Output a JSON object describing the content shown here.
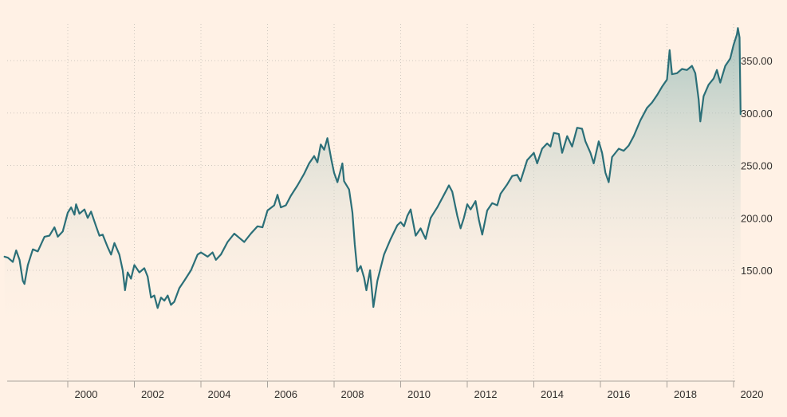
{
  "chart_data": {
    "type": "area",
    "title": "",
    "xlabel": "",
    "ylabel": "",
    "x_range": [
      1998.1,
      2020.2
    ],
    "ylim": [
      50,
      390
    ],
    "x_ticks": [
      {
        "value": 2000,
        "label": "2000"
      },
      {
        "value": 2002,
        "label": "2002"
      },
      {
        "value": 2004,
        "label": "2004"
      },
      {
        "value": 2006,
        "label": "2006"
      },
      {
        "value": 2008,
        "label": "2008"
      },
      {
        "value": 2010,
        "label": "2010"
      },
      {
        "value": 2012,
        "label": "2012"
      },
      {
        "value": 2014,
        "label": "2014"
      },
      {
        "value": 2016,
        "label": "2016"
      },
      {
        "value": 2018,
        "label": "2018"
      },
      {
        "value": 2020,
        "label": "2020"
      }
    ],
    "y_ticks": [
      {
        "value": 150,
        "label": "150.00"
      },
      {
        "value": 200,
        "label": "200.00"
      },
      {
        "value": 250,
        "label": "250.00"
      },
      {
        "value": 300,
        "label": "300.00"
      },
      {
        "value": 350,
        "label": "350.00"
      }
    ],
    "grid": true,
    "legend": "none",
    "colors": {
      "background": "#FFF1E5",
      "line": "#2b6f78",
      "area_top": "#8fb7b4",
      "grid": "#cfc6be"
    },
    "series": [
      {
        "values": [
          [
            1998.1,
            163
          ],
          [
            1998.2,
            162
          ],
          [
            1998.35,
            158
          ],
          [
            1998.45,
            169
          ],
          [
            1998.55,
            160
          ],
          [
            1998.65,
            140
          ],
          [
            1998.7,
            137
          ],
          [
            1998.8,
            155
          ],
          [
            1998.95,
            170
          ],
          [
            1999.1,
            168
          ],
          [
            1999.3,
            182
          ],
          [
            1999.45,
            183
          ],
          [
            1999.6,
            191
          ],
          [
            1999.7,
            182
          ],
          [
            1999.85,
            187
          ],
          [
            2000.0,
            205
          ],
          [
            2000.1,
            210
          ],
          [
            2000.2,
            203
          ],
          [
            2000.25,
            213
          ],
          [
            2000.35,
            204
          ],
          [
            2000.5,
            208
          ],
          [
            2000.6,
            200
          ],
          [
            2000.7,
            206
          ],
          [
            2000.85,
            192
          ],
          [
            2000.95,
            183
          ],
          [
            2001.05,
            184
          ],
          [
            2001.2,
            172
          ],
          [
            2001.3,
            165
          ],
          [
            2001.4,
            176
          ],
          [
            2001.55,
            165
          ],
          [
            2001.65,
            150
          ],
          [
            2001.72,
            131
          ],
          [
            2001.8,
            148
          ],
          [
            2001.9,
            142
          ],
          [
            2002.0,
            155
          ],
          [
            2002.15,
            148
          ],
          [
            2002.3,
            152
          ],
          [
            2002.4,
            144
          ],
          [
            2002.5,
            124
          ],
          [
            2002.6,
            126
          ],
          [
            2002.7,
            114
          ],
          [
            2002.8,
            124
          ],
          [
            2002.9,
            121
          ],
          [
            2003.0,
            126
          ],
          [
            2003.1,
            117
          ],
          [
            2003.2,
            120
          ],
          [
            2003.35,
            133
          ],
          [
            2003.5,
            140
          ],
          [
            2003.7,
            150
          ],
          [
            2003.9,
            165
          ],
          [
            2004.0,
            167
          ],
          [
            2004.2,
            163
          ],
          [
            2004.35,
            167
          ],
          [
            2004.45,
            160
          ],
          [
            2004.6,
            165
          ],
          [
            2004.8,
            177
          ],
          [
            2005.0,
            185
          ],
          [
            2005.15,
            181
          ],
          [
            2005.3,
            177
          ],
          [
            2005.5,
            185
          ],
          [
            2005.7,
            192
          ],
          [
            2005.85,
            191
          ],
          [
            2006.0,
            207
          ],
          [
            2006.2,
            212
          ],
          [
            2006.3,
            222
          ],
          [
            2006.4,
            210
          ],
          [
            2006.55,
            212
          ],
          [
            2006.7,
            221
          ],
          [
            2006.9,
            231
          ],
          [
            2007.1,
            242
          ],
          [
            2007.25,
            252
          ],
          [
            2007.4,
            259
          ],
          [
            2007.5,
            253
          ],
          [
            2007.6,
            270
          ],
          [
            2007.7,
            265
          ],
          [
            2007.8,
            276
          ],
          [
            2007.92,
            255
          ],
          [
            2008.0,
            243
          ],
          [
            2008.1,
            234
          ],
          [
            2008.25,
            252
          ],
          [
            2008.3,
            235
          ],
          [
            2008.45,
            227
          ],
          [
            2008.55,
            205
          ],
          [
            2008.62,
            175
          ],
          [
            2008.7,
            149
          ],
          [
            2008.8,
            154
          ],
          [
            2008.9,
            143
          ],
          [
            2008.97,
            131
          ],
          [
            2009.08,
            150
          ],
          [
            2009.18,
            115
          ],
          [
            2009.3,
            140
          ],
          [
            2009.5,
            165
          ],
          [
            2009.7,
            180
          ],
          [
            2009.9,
            193
          ],
          [
            2010.0,
            196
          ],
          [
            2010.1,
            192
          ],
          [
            2010.2,
            202
          ],
          [
            2010.3,
            208
          ],
          [
            2010.45,
            183
          ],
          [
            2010.6,
            190
          ],
          [
            2010.75,
            180
          ],
          [
            2010.9,
            200
          ],
          [
            2011.1,
            210
          ],
          [
            2011.3,
            222
          ],
          [
            2011.45,
            231
          ],
          [
            2011.55,
            225
          ],
          [
            2011.7,
            202
          ],
          [
            2011.8,
            190
          ],
          [
            2011.9,
            200
          ],
          [
            2012.0,
            213
          ],
          [
            2012.1,
            208
          ],
          [
            2012.25,
            216
          ],
          [
            2012.35,
            198
          ],
          [
            2012.45,
            184
          ],
          [
            2012.6,
            207
          ],
          [
            2012.75,
            214
          ],
          [
            2012.9,
            212
          ],
          [
            2013.0,
            223
          ],
          [
            2013.2,
            232
          ],
          [
            2013.35,
            240
          ],
          [
            2013.5,
            241
          ],
          [
            2013.6,
            235
          ],
          [
            2013.8,
            255
          ],
          [
            2014.0,
            262
          ],
          [
            2014.1,
            252
          ],
          [
            2014.25,
            266
          ],
          [
            2014.4,
            271
          ],
          [
            2014.5,
            268
          ],
          [
            2014.6,
            281
          ],
          [
            2014.75,
            280
          ],
          [
            2014.85,
            262
          ],
          [
            2015.0,
            278
          ],
          [
            2015.15,
            268
          ],
          [
            2015.3,
            286
          ],
          [
            2015.45,
            285
          ],
          [
            2015.55,
            273
          ],
          [
            2015.7,
            262
          ],
          [
            2015.8,
            252
          ],
          [
            2015.95,
            273
          ],
          [
            2016.05,
            262
          ],
          [
            2016.15,
            243
          ],
          [
            2016.25,
            234
          ],
          [
            2016.35,
            258
          ],
          [
            2016.55,
            266
          ],
          [
            2016.7,
            264
          ],
          [
            2016.85,
            269
          ],
          [
            2017.0,
            278
          ],
          [
            2017.2,
            293
          ],
          [
            2017.4,
            305
          ],
          [
            2017.55,
            310
          ],
          [
            2017.7,
            317
          ],
          [
            2017.85,
            325
          ],
          [
            2018.0,
            332
          ],
          [
            2018.08,
            360
          ],
          [
            2018.15,
            337
          ],
          [
            2018.3,
            338
          ],
          [
            2018.45,
            342
          ],
          [
            2018.6,
            341
          ],
          [
            2018.75,
            345
          ],
          [
            2018.85,
            338
          ],
          [
            2018.95,
            313
          ],
          [
            2019.0,
            292
          ],
          [
            2019.1,
            316
          ],
          [
            2019.25,
            327
          ],
          [
            2019.4,
            333
          ],
          [
            2019.5,
            341
          ],
          [
            2019.6,
            329
          ],
          [
            2019.75,
            345
          ],
          [
            2019.9,
            352
          ],
          [
            2020.0,
            365
          ],
          [
            2020.1,
            375
          ],
          [
            2020.13,
            381
          ],
          [
            2020.18,
            372
          ],
          [
            2020.21,
            299
          ]
        ]
      }
    ]
  }
}
